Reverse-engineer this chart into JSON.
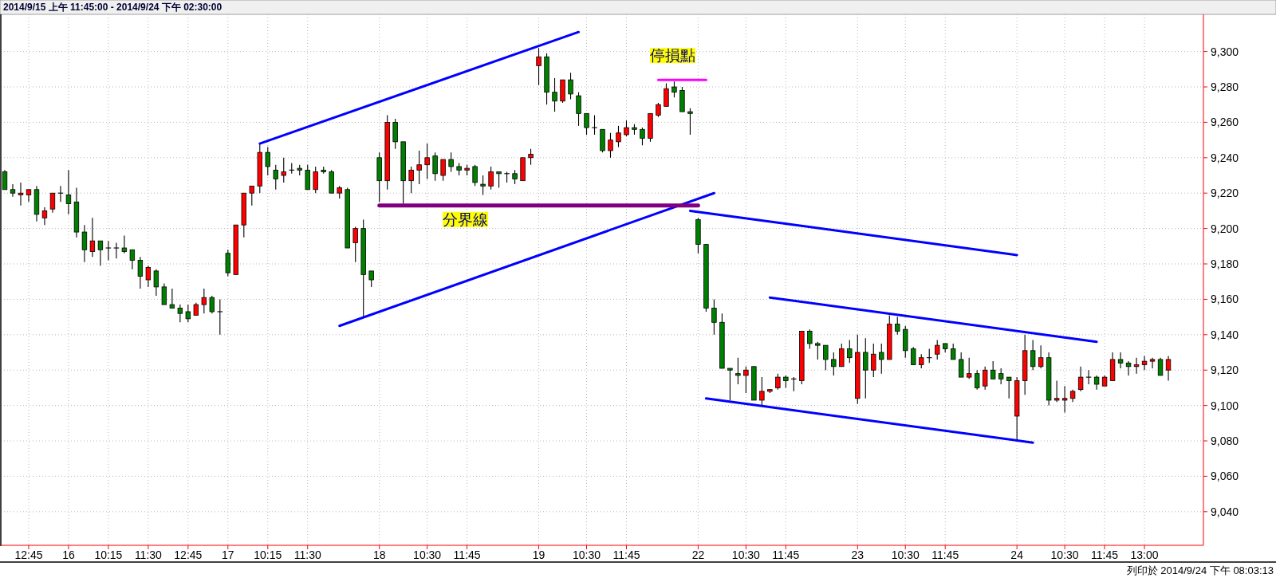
{
  "chart_data": {
    "type": "candlestick",
    "title": "2014/9/15 上午 11:45:00 - 2014/9/24 下午 02:30:00",
    "annotations": [
      "列印於 2014/9/24 下午 08:03:13"
    ],
    "categories": [
      null,
      null,
      null,
      "12:45",
      null,
      null,
      null,
      null,
      "16",
      null,
      null,
      null,
      null,
      "10:15",
      null,
      null,
      null,
      null,
      "11:30",
      null,
      null,
      null,
      null,
      "12:45",
      null,
      null,
      null,
      null,
      "17",
      null,
      null,
      null,
      null,
      "10:15",
      null,
      null,
      null,
      null,
      "11:30",
      null,
      null,
      null,
      null,
      null,
      null,
      null,
      null,
      "18",
      null,
      null,
      null,
      null,
      null,
      "10:30",
      null,
      null,
      null,
      null,
      "11:45",
      null,
      null,
      null,
      null,
      null,
      null,
      null,
      null,
      "19",
      null,
      null,
      null,
      null,
      null,
      "10:30",
      null,
      null,
      null,
      null,
      "11:45",
      null,
      null,
      null,
      null,
      null,
      null,
      null,
      null,
      "22",
      null,
      null,
      null,
      null,
      null,
      "10:30",
      null,
      null,
      null,
      null,
      "11:45",
      null,
      null,
      null,
      null,
      null,
      null,
      null,
      null,
      "23",
      null,
      null,
      null,
      null,
      null,
      "10:30",
      null,
      null,
      null,
      null,
      "11:45",
      null,
      null,
      null,
      null,
      null,
      null,
      null,
      null,
      "24",
      null,
      null,
      null,
      null,
      null,
      "10:30",
      null,
      null,
      null,
      null,
      "11:45",
      null,
      null,
      null,
      null,
      "13:00",
      null,
      null,
      null
    ],
    "ohlc": [
      [
        9232,
        9233,
        9222,
        9222
      ],
      [
        9222,
        9225,
        9218,
        9220
      ],
      [
        9219,
        9226,
        9213,
        9220
      ],
      [
        9219,
        9222,
        9215,
        9222
      ],
      [
        9222,
        9224,
        9204,
        9208
      ],
      [
        9206,
        9212,
        9202,
        9210
      ],
      [
        9211,
        9220,
        9209,
        9220
      ],
      [
        9220,
        9224,
        9215,
        9220
      ],
      [
        9219,
        9233,
        9208,
        9214
      ],
      [
        9215,
        9223,
        9195,
        9198
      ],
      [
        9198,
        9202,
        9181,
        9188
      ],
      [
        9187,
        9206,
        9184,
        9193
      ],
      [
        9193,
        9193,
        9179,
        9188
      ],
      [
        9189,
        9193,
        9182,
        9189
      ],
      [
        9189,
        9192,
        9183,
        9189
      ],
      [
        9189,
        9196,
        9186,
        9187
      ],
      [
        9188,
        9188,
        9177,
        9182
      ],
      [
        9182,
        9184,
        9166,
        9173
      ],
      [
        9171,
        9179,
        9167,
        9178
      ],
      [
        9176,
        9177,
        9162,
        9167
      ],
      [
        9167,
        9169,
        9157,
        9157
      ],
      [
        9157,
        9166,
        9155,
        9155
      ],
      [
        9155,
        9157,
        9147,
        9152
      ],
      [
        9153,
        9157,
        9147,
        9149
      ],
      [
        9151,
        9158,
        9151,
        9157
      ],
      [
        9157,
        9166,
        9152,
        9161
      ],
      [
        9161,
        9162,
        9152,
        9153
      ],
      [
        9153,
        9160,
        9140,
        9153
      ],
      [
        9186,
        9188,
        9173,
        9175
      ],
      [
        9174,
        9202,
        9174,
        9202
      ],
      [
        9202,
        9220,
        9195,
        9220
      ],
      [
        9220,
        9224,
        9213,
        9224
      ],
      [
        9224,
        9248,
        9220,
        9243
      ],
      [
        9243,
        9246,
        9230,
        9235
      ],
      [
        9233,
        9236,
        9222,
        9228
      ],
      [
        9230,
        9240,
        9226,
        9232
      ],
      [
        9233,
        9237,
        9231,
        9233
      ],
      [
        9234,
        9236,
        9230,
        9233
      ],
      [
        9233,
        9236,
        9222,
        9222
      ],
      [
        9222,
        9235,
        9220,
        9232
      ],
      [
        9233,
        9235,
        9231,
        9232
      ],
      [
        9232,
        9233,
        9220,
        9220
      ],
      [
        9220,
        9224,
        9217,
        9223
      ],
      [
        9222,
        9223,
        9189,
        9189
      ],
      [
        9192,
        9201,
        9181,
        9200
      ],
      [
        9200,
        9205,
        9150,
        9174
      ],
      [
        9176,
        9176,
        9167,
        9171
      ],
      [
        9240,
        9243,
        9215,
        9227
      ],
      [
        9227,
        9264,
        9222,
        9260
      ],
      [
        9260,
        9262,
        9245,
        9249
      ],
      [
        9249,
        9249,
        9214,
        9227
      ],
      [
        9227,
        9235,
        9220,
        9233
      ],
      [
        9233,
        9244,
        9225,
        9236
      ],
      [
        9236,
        9248,
        9228,
        9240
      ],
      [
        9241,
        9243,
        9227,
        9231
      ],
      [
        9230,
        9239,
        9227,
        9239
      ],
      [
        9239,
        9243,
        9232,
        9235
      ],
      [
        9235,
        9237,
        9230,
        9233
      ],
      [
        9233,
        9236,
        9230,
        9234
      ],
      [
        9235,
        9236,
        9224,
        9226
      ],
      [
        9225,
        9230,
        9219,
        9224
      ],
      [
        9224,
        9235,
        9222,
        9232
      ],
      [
        9232,
        9232,
        9223,
        9231
      ],
      [
        9231,
        9232,
        9226,
        9231
      ],
      [
        9231,
        9233,
        9225,
        9228
      ],
      [
        9227,
        9240,
        9227,
        9240
      ],
      [
        9240,
        9245,
        9236,
        9242
      ],
      [
        9292,
        9302,
        9281,
        9297
      ],
      [
        9297,
        9299,
        9270,
        9277
      ],
      [
        9277,
        9285,
        9266,
        9272
      ],
      [
        9272,
        9284,
        9271,
        9284
      ],
      [
        9284,
        9288,
        9273,
        9276
      ],
      [
        9275,
        9277,
        9258,
        9265
      ],
      [
        9265,
        9265,
        9253,
        9257
      ],
      [
        9257,
        9264,
        9253,
        9257
      ],
      [
        9256,
        9256,
        9243,
        9244
      ],
      [
        9244,
        9254,
        9240,
        9250
      ],
      [
        9249,
        9258,
        9246,
        9254
      ],
      [
        9253,
        9261,
        9252,
        9257
      ],
      [
        9257,
        9259,
        9253,
        9256
      ],
      [
        9256,
        9257,
        9247,
        9251
      ],
      [
        9251,
        9265,
        9249,
        9265
      ],
      [
        9264,
        9271,
        9263,
        9270
      ],
      [
        9269,
        9282,
        9269,
        9279
      ],
      [
        9280,
        9283,
        9274,
        9277
      ],
      [
        9278,
        9280,
        9266,
        9266
      ],
      [
        9266,
        9268,
        9253,
        9265
      ],
      [
        9205,
        9206,
        9186,
        9191
      ],
      [
        9191,
        9191,
        9153,
        9155
      ],
      [
        9155,
        9160,
        9140,
        9147
      ],
      [
        9147,
        9152,
        9121,
        9121
      ],
      [
        9121,
        9121,
        9103,
        9120
      ],
      [
        9118,
        9127,
        9112,
        9117
      ],
      [
        9117,
        9122,
        9107,
        9120
      ],
      [
        9122,
        9122,
        9103,
        9103
      ],
      [
        9103,
        9116,
        9100,
        9108
      ],
      [
        9108,
        9109,
        9107,
        9109
      ],
      [
        9110,
        9118,
        9109,
        9116
      ],
      [
        9116,
        9117,
        9110,
        9114
      ],
      [
        9115,
        9116,
        9108,
        9115
      ],
      [
        9114,
        9142,
        9112,
        9142
      ],
      [
        9142,
        9143,
        9132,
        9135
      ],
      [
        9135,
        9136,
        9126,
        9134
      ],
      [
        9134,
        9134,
        9120,
        9126
      ],
      [
        9126,
        9130,
        9117,
        9122
      ],
      [
        9122,
        9135,
        9122,
        9132
      ],
      [
        9132,
        9137,
        9124,
        9127
      ],
      [
        9104,
        9140,
        9101,
        9130
      ],
      [
        9130,
        9138,
        9104,
        9120
      ],
      [
        9120,
        9135,
        9116,
        9129
      ],
      [
        9130,
        9135,
        9118,
        9126
      ],
      [
        9126,
        9151,
        9126,
        9146
      ],
      [
        9146,
        9150,
        9140,
        9142
      ],
      [
        9143,
        9145,
        9127,
        9131
      ],
      [
        9132,
        9133,
        9123,
        9123
      ],
      [
        9123,
        9129,
        9121,
        9127
      ],
      [
        9127,
        9132,
        9124,
        9127
      ],
      [
        9129,
        9137,
        9126,
        9134
      ],
      [
        9135,
        9135,
        9130,
        9132
      ],
      [
        9132,
        9135,
        9126,
        9126
      ],
      [
        9126,
        9130,
        9116,
        9116
      ],
      [
        9116,
        9127,
        9115,
        9118
      ],
      [
        9118,
        9120,
        9109,
        9110
      ],
      [
        9111,
        9122,
        9109,
        9120
      ],
      [
        9120,
        9125,
        9115,
        9115
      ],
      [
        9118,
        9121,
        9112,
        9115
      ],
      [
        9116,
        9116,
        9104,
        9114
      ],
      [
        9094,
        9116,
        9080,
        9114
      ],
      [
        9114,
        9140,
        9106,
        9131
      ],
      [
        9131,
        9137,
        9120,
        9122
      ],
      [
        9122,
        9134,
        9121,
        9127
      ],
      [
        9127,
        9130,
        9100,
        9103
      ],
      [
        9103,
        9114,
        9102,
        9104
      ],
      [
        9103,
        9111,
        9096,
        9104
      ],
      [
        9104,
        9109,
        9102,
        9108
      ],
      [
        9109,
        9122,
        9108,
        9116
      ],
      [
        9116,
        9120,
        9112,
        9116
      ],
      [
        9116,
        9117,
        9109,
        9112
      ],
      [
        9111,
        9117,
        9111,
        9116
      ],
      [
        9114,
        9130,
        9114,
        9126
      ],
      [
        9126,
        9130,
        9121,
        9124
      ],
      [
        9124,
        9125,
        9117,
        9122
      ],
      [
        9122,
        9127,
        9118,
        9123
      ],
      [
        9123,
        9128,
        9120,
        9125
      ],
      [
        9125,
        9127,
        9121,
        9126
      ],
      [
        9126,
        9127,
        9117,
        9117
      ],
      [
        9120,
        9128,
        9114,
        9126
      ]
    ],
    "series": [
      {
        "type": "line",
        "color": "#0000ff",
        "values": [
          null,
          null,
          null,
          null,
          null,
          null,
          null,
          null,
          null,
          null,
          null,
          null,
          null,
          null,
          null,
          null,
          null,
          null,
          null,
          null,
          null,
          null,
          null,
          null,
          null,
          null,
          null,
          null,
          null,
          null,
          null,
          null,
          9248,
          null,
          null,
          null,
          null,
          null,
          null,
          null,
          null,
          null,
          null,
          null,
          null,
          null,
          null,
          null,
          null,
          null,
          null,
          null,
          null,
          null,
          null,
          null,
          null,
          null,
          null,
          null,
          null,
          null,
          null,
          null,
          null,
          null,
          null,
          null,
          null,
          null,
          null,
          null,
          9311,
          null,
          null,
          null,
          null,
          null,
          null,
          null,
          null,
          null,
          null,
          null,
          null,
          null,
          null,
          null,
          null,
          null,
          null,
          null,
          null,
          null,
          null,
          null,
          null,
          null,
          null,
          null,
          null,
          null,
          null,
          null,
          null,
          null,
          null,
          null,
          null,
          null,
          null,
          null,
          null,
          null,
          null,
          null,
          null,
          null,
          null,
          null,
          null,
          null,
          null,
          null,
          null,
          null,
          null,
          null,
          null,
          null,
          null,
          null,
          null,
          null,
          null,
          null,
          null,
          null,
          null,
          null,
          null,
          null,
          null,
          null,
          null,
          null,
          null
        ]
      },
      {
        "type": "line",
        "color": "#0000ff",
        "values": [
          null,
          null,
          null,
          null,
          null,
          null,
          null,
          null,
          null,
          null,
          null,
          null,
          null,
          null,
          null,
          null,
          null,
          null,
          null,
          null,
          null,
          null,
          null,
          null,
          null,
          null,
          null,
          null,
          null,
          null,
          null,
          null,
          null,
          null,
          null,
          null,
          null,
          null,
          null,
          null,
          null,
          null,
          9145,
          null,
          null,
          null,
          null,
          null,
          null,
          null,
          null,
          null,
          null,
          null,
          null,
          null,
          null,
          null,
          null,
          null,
          null,
          null,
          null,
          null,
          null,
          null,
          null,
          null,
          null,
          null,
          null,
          null,
          null,
          null,
          null,
          null,
          null,
          null,
          null,
          null,
          null,
          null,
          null,
          null,
          null,
          null,
          null,
          null,
          null,
          9220,
          null,
          null,
          null,
          null,
          null,
          null,
          null,
          null,
          null,
          null,
          null,
          null,
          null,
          null,
          null,
          null,
          null,
          null,
          null,
          null,
          null,
          null,
          null,
          null,
          null,
          null,
          null,
          null,
          null,
          null,
          null,
          null,
          null,
          null,
          null,
          null,
          null,
          null,
          null,
          null,
          null,
          null,
          null,
          null,
          null,
          null,
          null,
          null,
          null,
          null,
          null,
          null,
          null,
          null,
          null,
          null,
          null
        ]
      },
      {
        "type": "line",
        "color": "#800080",
        "name": "分界線",
        "values": [
          null,
          null,
          null,
          null,
          null,
          null,
          null,
          null,
          null,
          null,
          null,
          null,
          null,
          null,
          null,
          null,
          null,
          null,
          null,
          null,
          null,
          null,
          null,
          null,
          null,
          null,
          null,
          null,
          null,
          null,
          null,
          null,
          null,
          null,
          null,
          null,
          null,
          null,
          null,
          null,
          null,
          null,
          null,
          null,
          null,
          null,
          null,
          9213,
          null,
          null,
          null,
          null,
          null,
          null,
          null,
          null,
          null,
          null,
          null,
          null,
          null,
          null,
          null,
          null,
          null,
          null,
          null,
          null,
          null,
          null,
          null,
          null,
          null,
          null,
          null,
          null,
          null,
          null,
          null,
          null,
          null,
          null,
          null,
          null,
          null,
          null,
          null,
          9213,
          null,
          null,
          null,
          null,
          null,
          null,
          null,
          null,
          null,
          null,
          null,
          null,
          null,
          null,
          null,
          null,
          null,
          null,
          null,
          null,
          null,
          null,
          null,
          null,
          null,
          null,
          null,
          null,
          null,
          null,
          null,
          null,
          null,
          null,
          null,
          null,
          null,
          null,
          null,
          null,
          null,
          null,
          null,
          null,
          null,
          null,
          null,
          null,
          null,
          null,
          null,
          null,
          null,
          null,
          null,
          null,
          null,
          null,
          null
        ]
      },
      {
        "type": "line",
        "color": "#ff00ff",
        "name": "停損點",
        "values": [
          null,
          null,
          null,
          null,
          null,
          null,
          null,
          null,
          null,
          null,
          null,
          null,
          null,
          null,
          null,
          null,
          null,
          null,
          null,
          null,
          null,
          null,
          null,
          null,
          null,
          null,
          null,
          null,
          null,
          null,
          null,
          null,
          null,
          null,
          null,
          null,
          null,
          null,
          null,
          null,
          null,
          null,
          null,
          null,
          null,
          null,
          null,
          null,
          null,
          null,
          null,
          null,
          null,
          null,
          null,
          null,
          null,
          null,
          null,
          null,
          null,
          null,
          null,
          null,
          null,
          null,
          null,
          null,
          null,
          null,
          null,
          null,
          null,
          null,
          null,
          null,
          null,
          null,
          null,
          null,
          null,
          null,
          9284,
          null,
          null,
          null,
          null,
          null,
          9284,
          null,
          null,
          null,
          null,
          null,
          null,
          null,
          null,
          null,
          null,
          null,
          null,
          null,
          null,
          null,
          null,
          null,
          null,
          null,
          null,
          null,
          null,
          null,
          null,
          null,
          null,
          null,
          null,
          null,
          null,
          null,
          null,
          null,
          null,
          null,
          null,
          null,
          null,
          null,
          null,
          null,
          null,
          null,
          null,
          null,
          null,
          null,
          null,
          null,
          null,
          null,
          null,
          null,
          null,
          null,
          null,
          null,
          null
        ]
      },
      {
        "type": "line",
        "color": "#0000ff",
        "values": [
          null,
          null,
          null,
          null,
          null,
          null,
          null,
          null,
          null,
          null,
          null,
          null,
          null,
          null,
          null,
          null,
          null,
          null,
          null,
          null,
          null,
          null,
          null,
          null,
          null,
          null,
          null,
          null,
          null,
          null,
          null,
          null,
          null,
          null,
          null,
          null,
          null,
          null,
          null,
          null,
          null,
          null,
          null,
          null,
          null,
          null,
          null,
          null,
          null,
          null,
          null,
          null,
          null,
          null,
          null,
          null,
          null,
          null,
          null,
          null,
          null,
          null,
          null,
          null,
          null,
          null,
          null,
          null,
          null,
          null,
          null,
          null,
          null,
          null,
          null,
          null,
          null,
          null,
          null,
          null,
          null,
          null,
          null,
          null,
          null,
          null,
          9210,
          null,
          null,
          null,
          null,
          null,
          null,
          null,
          null,
          null,
          null,
          null,
          null,
          null,
          null,
          null,
          null,
          null,
          null,
          null,
          null,
          null,
          null,
          null,
          null,
          null,
          null,
          null,
          null,
          null,
          null,
          null,
          null,
          null,
          null,
          null,
          null,
          null,
          null,
          null,
          null,
          9185,
          null,
          null,
          null,
          null,
          null,
          null,
          null,
          null,
          null,
          null,
          null,
          null,
          null,
          null,
          null,
          null,
          null,
          null,
          null
        ]
      },
      {
        "type": "line",
        "color": "#0000ff",
        "values": [
          null,
          null,
          null,
          null,
          null,
          null,
          null,
          null,
          null,
          null,
          null,
          null,
          null,
          null,
          null,
          null,
          null,
          null,
          null,
          null,
          null,
          null,
          null,
          null,
          null,
          null,
          null,
          null,
          null,
          null,
          null,
          null,
          null,
          null,
          null,
          null,
          null,
          null,
          null,
          null,
          null,
          null,
          null,
          null,
          null,
          null,
          null,
          null,
          null,
          null,
          null,
          null,
          null,
          null,
          null,
          null,
          null,
          null,
          null,
          null,
          null,
          null,
          null,
          null,
          null,
          null,
          null,
          null,
          null,
          null,
          null,
          null,
          null,
          null,
          null,
          null,
          null,
          null,
          null,
          null,
          null,
          null,
          null,
          null,
          null,
          null,
          null,
          null,
          null,
          null,
          null,
          null,
          null,
          null,
          null,
          null,
          9161,
          null,
          null,
          null,
          null,
          null,
          null,
          null,
          null,
          null,
          null,
          null,
          null,
          null,
          null,
          null,
          null,
          null,
          null,
          null,
          null,
          null,
          null,
          null,
          null,
          null,
          null,
          null,
          null,
          null,
          null,
          null,
          null,
          null,
          null,
          null,
          null,
          null,
          null,
          null,
          null,
          9136,
          null,
          null,
          null,
          null,
          null,
          null,
          null,
          null,
          null
        ]
      },
      {
        "type": "line",
        "color": "#0000ff",
        "values": [
          null,
          null,
          null,
          null,
          null,
          null,
          null,
          null,
          null,
          null,
          null,
          null,
          null,
          null,
          null,
          null,
          null,
          null,
          null,
          null,
          null,
          null,
          null,
          null,
          null,
          null,
          null,
          null,
          null,
          null,
          null,
          null,
          null,
          null,
          null,
          null,
          null,
          null,
          null,
          null,
          null,
          null,
          null,
          null,
          null,
          null,
          null,
          null,
          null,
          null,
          null,
          null,
          null,
          null,
          null,
          null,
          null,
          null,
          null,
          null,
          null,
          null,
          null,
          null,
          null,
          null,
          null,
          null,
          null,
          null,
          null,
          null,
          null,
          null,
          null,
          null,
          null,
          null,
          null,
          null,
          null,
          null,
          null,
          null,
          null,
          null,
          null,
          null,
          9104,
          null,
          null,
          null,
          null,
          null,
          null,
          null,
          null,
          null,
          null,
          null,
          null,
          null,
          null,
          null,
          null,
          null,
          null,
          null,
          null,
          null,
          null,
          null,
          null,
          null,
          null,
          null,
          null,
          null,
          null,
          null,
          null,
          null,
          null,
          null,
          null,
          null,
          null,
          null,
          null,
          9079,
          null,
          null,
          null,
          null,
          null,
          null,
          null,
          null,
          null,
          null,
          null,
          null,
          null,
          null,
          null,
          null,
          null
        ]
      }
    ],
    "ylim": [
      9021,
      9321
    ],
    "yticks": [
      {
        "value": 9040,
        "label": "9,040"
      },
      {
        "value": 9060,
        "label": "9,060"
      },
      {
        "value": 9080,
        "label": "9,080"
      },
      {
        "value": 9100,
        "label": "9,100"
      },
      {
        "value": 9120,
        "label": "9,120"
      },
      {
        "value": 9140,
        "label": "9,140"
      },
      {
        "value": 9160,
        "label": "9,160"
      },
      {
        "value": 9180,
        "label": "9,180"
      },
      {
        "value": 9200,
        "label": "9,200"
      },
      {
        "value": 9220,
        "label": "9,220"
      },
      {
        "value": 9240,
        "label": "9,240"
      },
      {
        "value": 9260,
        "label": "9,260"
      },
      {
        "value": 9280,
        "label": "9,280"
      },
      {
        "value": 9300,
        "label": "9,300"
      }
    ],
    "grid": true
  }
}
